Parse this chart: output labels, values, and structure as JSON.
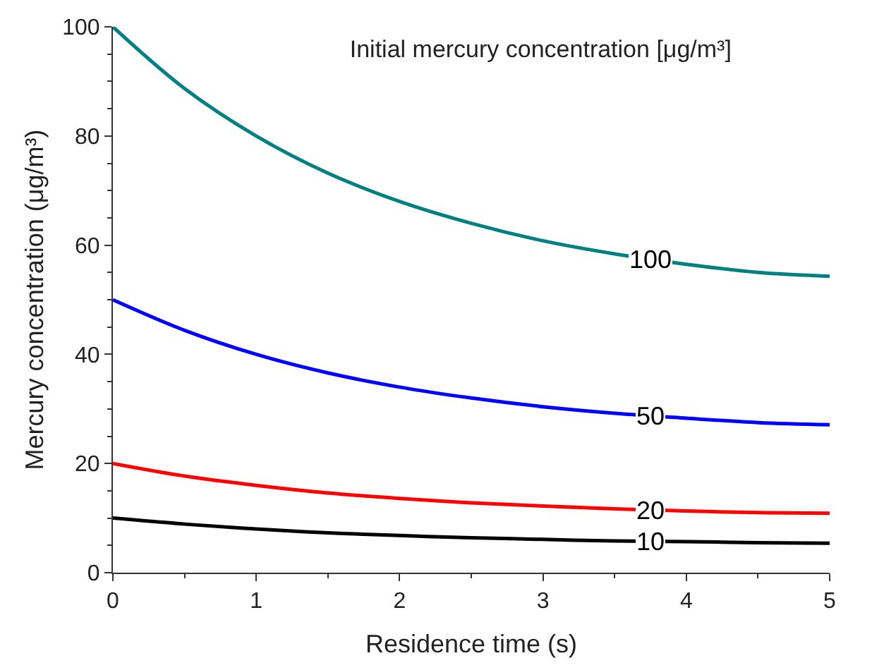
{
  "chart_data": {
    "type": "line",
    "title": "Initial mercury concentration [μg/m³]",
    "xlabel": "Residence time (s)",
    "ylabel": "Mercury concentration (μg/m³)",
    "x": [
      0,
      0.5,
      1,
      1.5,
      2,
      2.5,
      3,
      3.5,
      4,
      4.5,
      5
    ],
    "series": [
      {
        "name": "100",
        "color": "#008080",
        "values": [
          100,
          88.7,
          80,
          73.2,
          68,
          64,
          60.8,
          58.4,
          56.5,
          55,
          54.3
        ]
      },
      {
        "name": "50",
        "color": "#0000ff",
        "values": [
          50,
          44.4,
          40,
          36.6,
          34,
          32,
          30.4,
          29.2,
          28.3,
          27.5,
          27.1
        ]
      },
      {
        "name": "20",
        "color": "#ff0000",
        "values": [
          20,
          17.7,
          16,
          14.6,
          13.6,
          12.8,
          12.2,
          11.7,
          11.3,
          11,
          10.9
        ]
      },
      {
        "name": "10",
        "color": "#000000",
        "values": [
          10,
          8.9,
          8,
          7.3,
          6.8,
          6.4,
          6.1,
          5.8,
          5.7,
          5.5,
          5.4
        ]
      }
    ],
    "xlim": [
      0,
      5
    ],
    "xticks": [
      0,
      1,
      2,
      3,
      4,
      5
    ],
    "ylim": [
      0,
      100
    ],
    "yticks": [
      0,
      20,
      40,
      60,
      80,
      100
    ],
    "legend": false,
    "line_style": "solid"
  }
}
